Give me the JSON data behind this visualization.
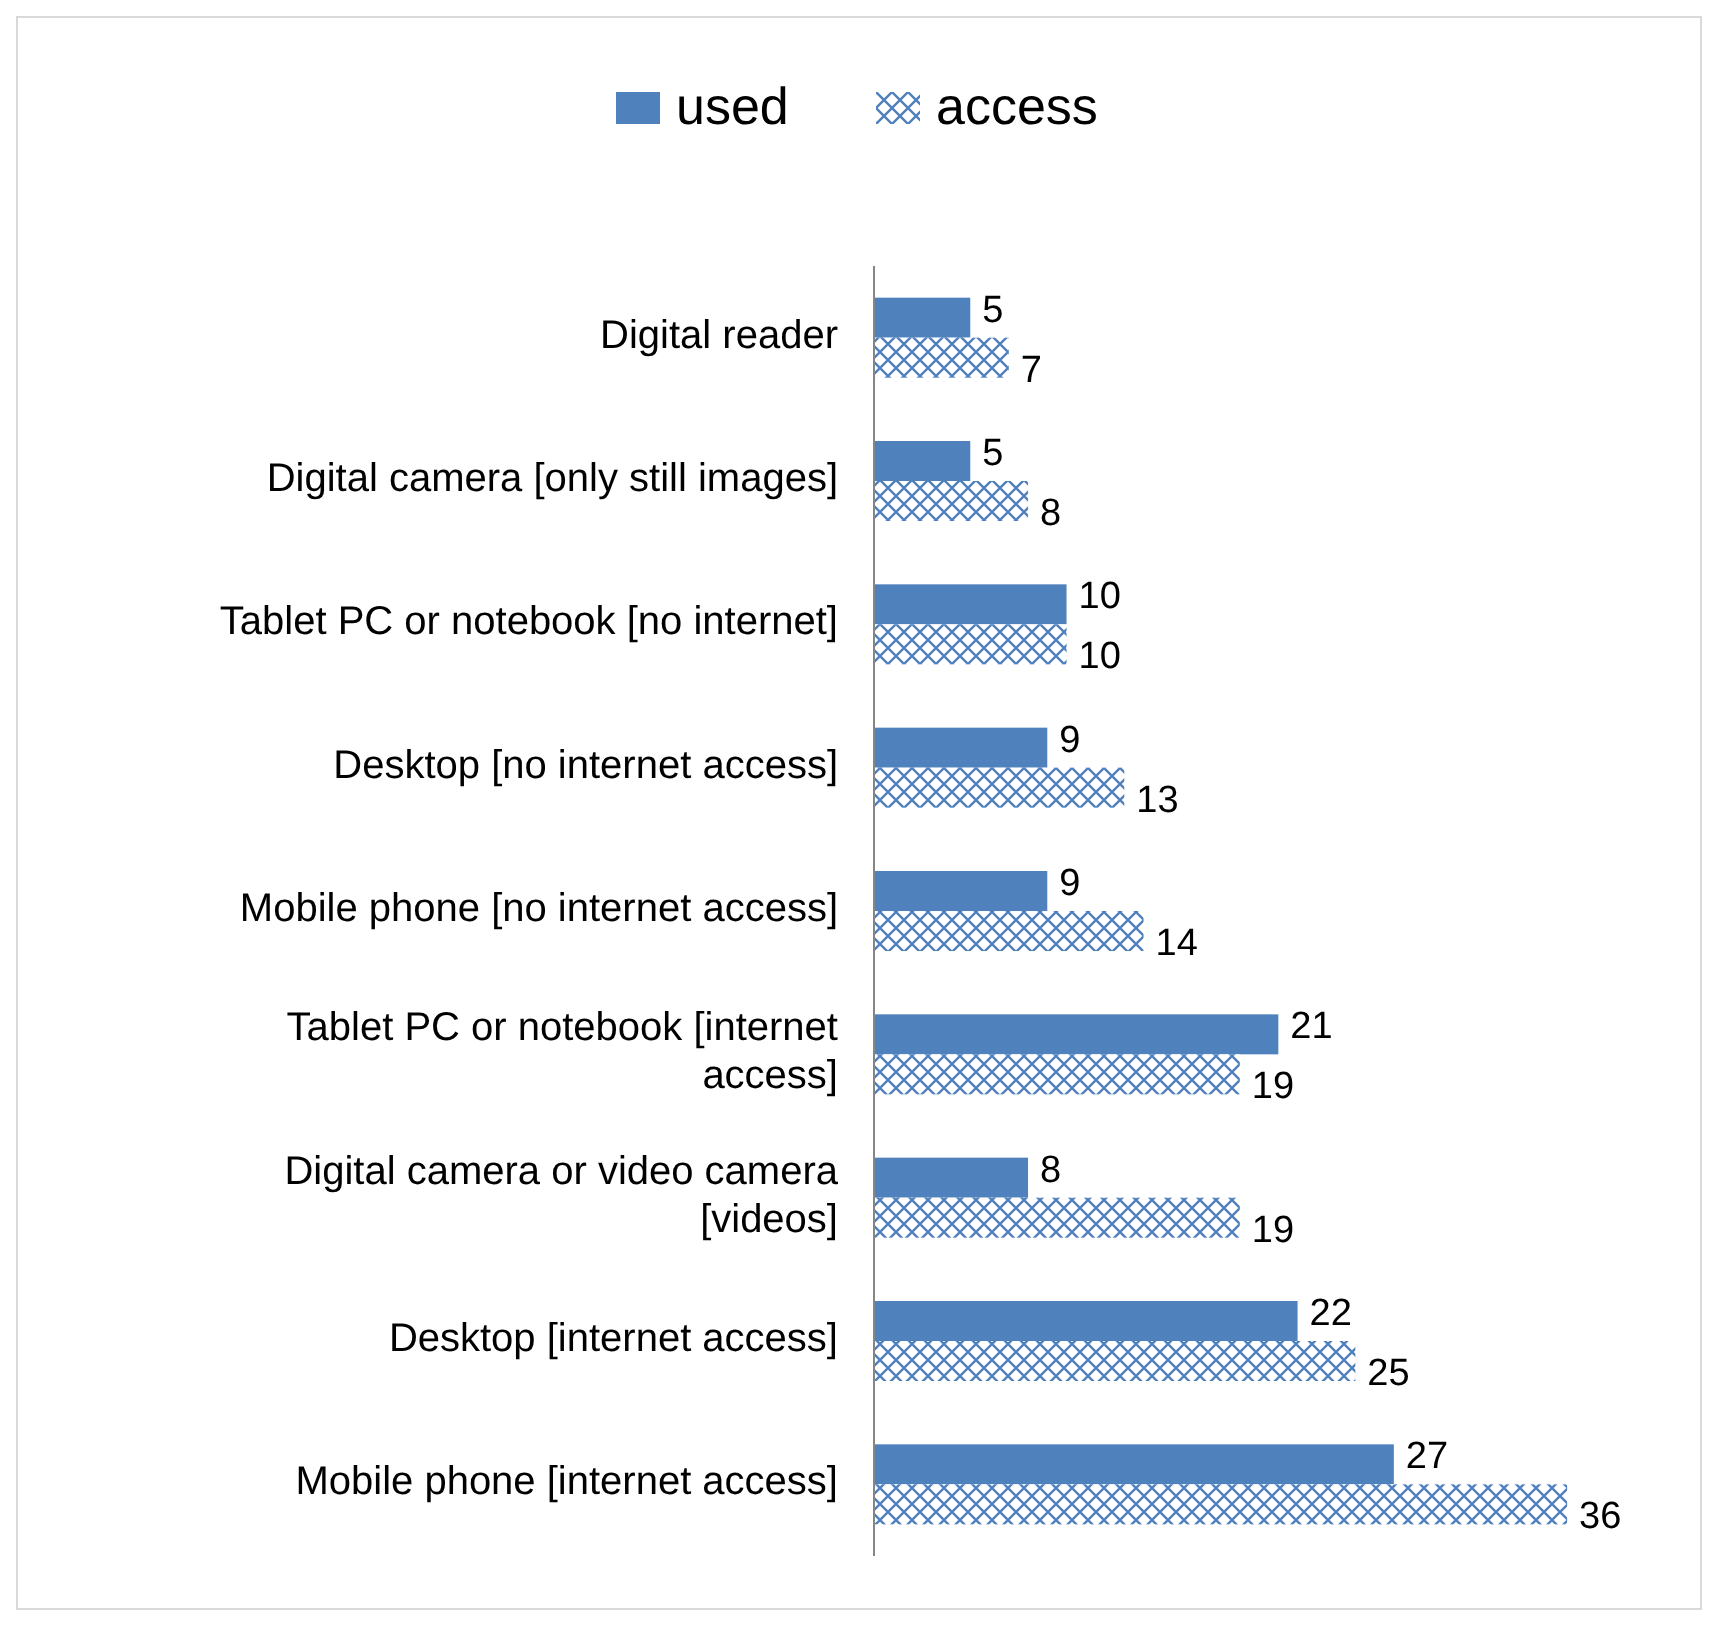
{
  "chart_data": {
    "type": "bar",
    "orientation": "horizontal",
    "data_labels": true,
    "legend": "top",
    "categories": [
      "Digital reader",
      "Digital camera [only still images]",
      "Tablet PC or notebook [no internet]",
      "Desktop [no internet access]",
      "Mobile phone [no internet access]",
      "Tablet PC or notebook [internet access]",
      "Digital camera or video camera [videos]",
      "Desktop [internet access]",
      "Mobile phone [internet access]"
    ],
    "series": [
      {
        "name": "used",
        "color": "#4f81bd",
        "values": [
          5,
          5,
          10,
          9,
          9,
          21,
          8,
          22,
          27
        ]
      },
      {
        "name": "access",
        "color": "#4f81bd",
        "values": [
          7,
          8,
          10,
          13,
          14,
          19,
          19,
          25,
          36
        ]
      }
    ]
  }
}
